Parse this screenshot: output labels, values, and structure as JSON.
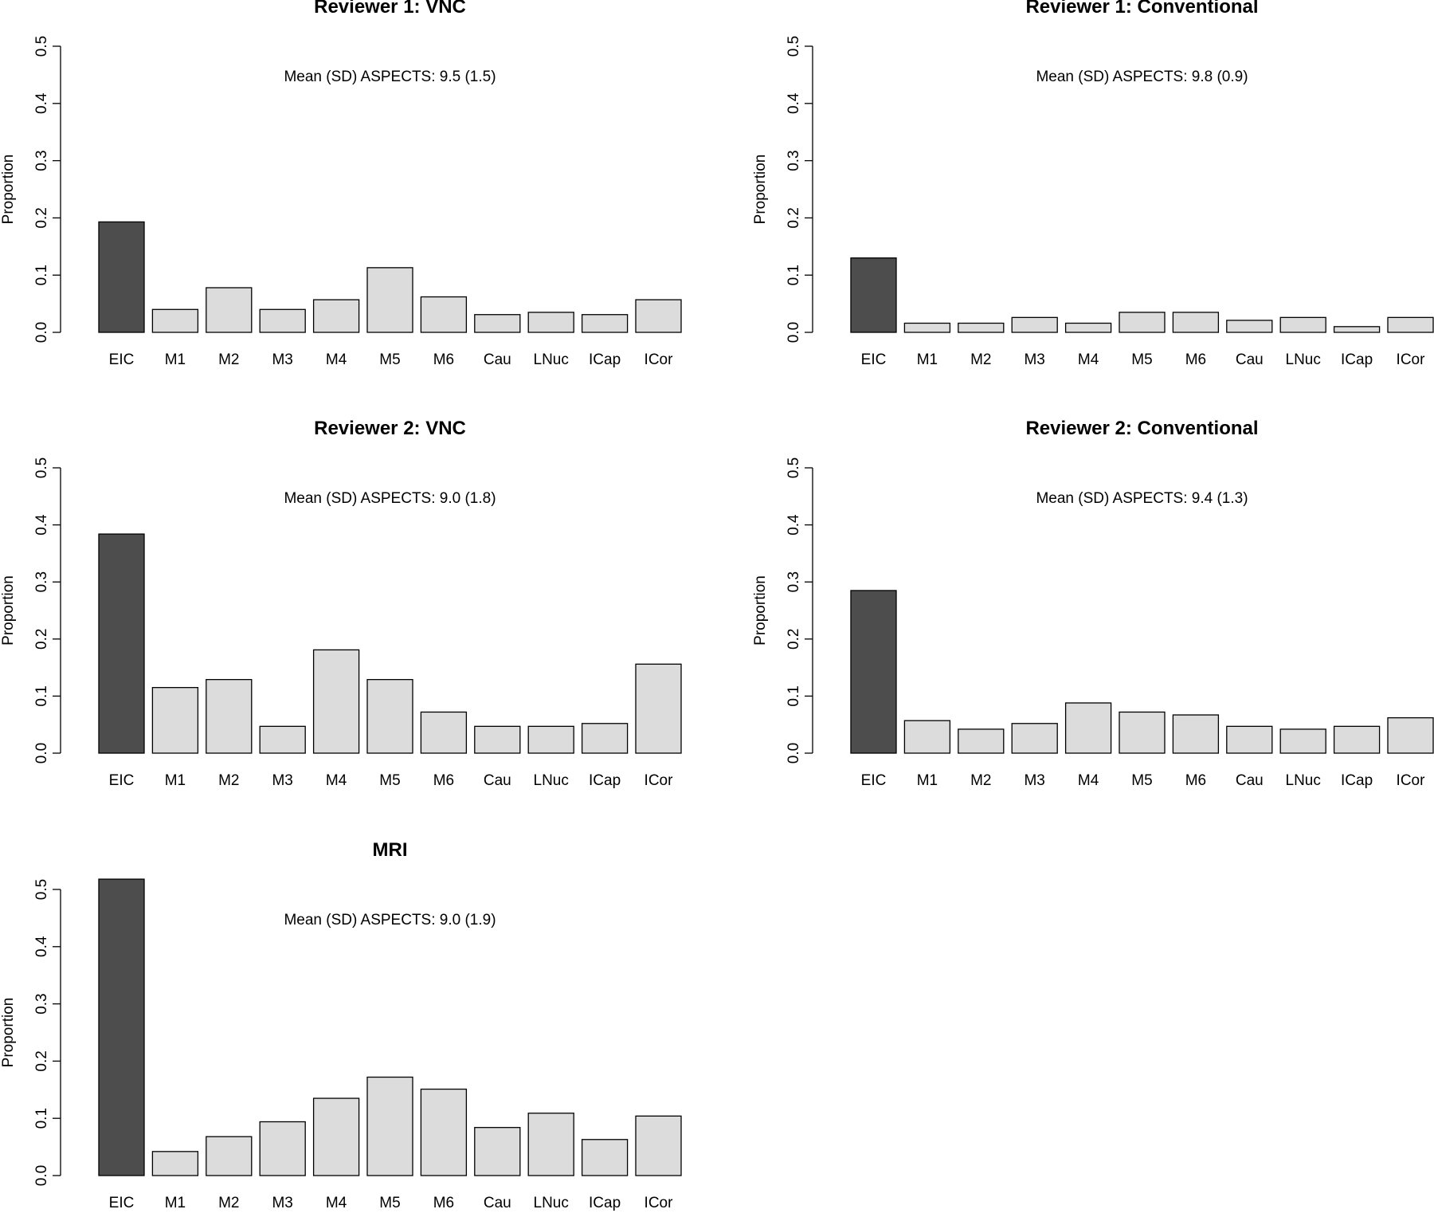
{
  "chart_data": [
    {
      "type": "bar",
      "title": "Reviewer 1: VNC",
      "annotation": "Mean (SD) ASPECTS: 9.5 (1.5)",
      "ylabel": "Proportion",
      "xlabel": "",
      "ylim": [
        0,
        0.5
      ],
      "yticks": [
        "0.0",
        "0.1",
        "0.2",
        "0.3",
        "0.4",
        "0.5"
      ],
      "categories": [
        "EIC",
        "M1",
        "M2",
        "M3",
        "M4",
        "M5",
        "M6",
        "Cau",
        "LNuc",
        "ICap",
        "ICor"
      ],
      "values": [
        0.193,
        0.04,
        0.078,
        0.04,
        0.057,
        0.113,
        0.062,
        0.031,
        0.035,
        0.031,
        0.057
      ],
      "highlight_color": "#4d4d4d",
      "bar_color": "#dcdcdc"
    },
    {
      "type": "bar",
      "title": "Reviewer 1: Conventional",
      "annotation": "Mean (SD) ASPECTS: 9.8 (0.9)",
      "ylabel": "Proportion",
      "xlabel": "",
      "ylim": [
        0,
        0.5
      ],
      "yticks": [
        "0.0",
        "0.1",
        "0.2",
        "0.3",
        "0.4",
        "0.5"
      ],
      "categories": [
        "EIC",
        "M1",
        "M2",
        "M3",
        "M4",
        "M5",
        "M6",
        "Cau",
        "LNuc",
        "ICap",
        "ICor"
      ],
      "values": [
        0.13,
        0.016,
        0.016,
        0.026,
        0.016,
        0.035,
        0.035,
        0.021,
        0.026,
        0.01,
        0.026
      ],
      "highlight_color": "#4d4d4d",
      "bar_color": "#dcdcdc"
    },
    {
      "type": "bar",
      "title": "Reviewer 2: VNC",
      "annotation": "Mean (SD) ASPECTS: 9.0 (1.8)",
      "ylabel": "Proportion",
      "xlabel": "",
      "ylim": [
        0,
        0.5
      ],
      "yticks": [
        "0.0",
        "0.1",
        "0.2",
        "0.3",
        "0.4",
        "0.5"
      ],
      "categories": [
        "EIC",
        "M1",
        "M2",
        "M3",
        "M4",
        "M5",
        "M6",
        "Cau",
        "LNuc",
        "ICap",
        "ICor"
      ],
      "values": [
        0.384,
        0.115,
        0.129,
        0.047,
        0.181,
        0.129,
        0.072,
        0.047,
        0.047,
        0.052,
        0.156
      ],
      "highlight_color": "#4d4d4d",
      "bar_color": "#dcdcdc"
    },
    {
      "type": "bar",
      "title": "Reviewer 2: Conventional",
      "annotation": "Mean (SD) ASPECTS: 9.4 (1.3)",
      "ylabel": "Proportion",
      "xlabel": "",
      "ylim": [
        0,
        0.5
      ],
      "yticks": [
        "0.0",
        "0.1",
        "0.2",
        "0.3",
        "0.4",
        "0.5"
      ],
      "categories": [
        "EIC",
        "M1",
        "M2",
        "M3",
        "M4",
        "M5",
        "M6",
        "Cau",
        "LNuc",
        "ICap",
        "ICor"
      ],
      "values": [
        0.285,
        0.057,
        0.042,
        0.052,
        0.088,
        0.072,
        0.067,
        0.047,
        0.042,
        0.047,
        0.062
      ],
      "highlight_color": "#4d4d4d",
      "bar_color": "#dcdcdc"
    },
    {
      "type": "bar",
      "title": "MRI",
      "annotation": "Mean (SD) ASPECTS: 9.0 (1.9)",
      "ylabel": "Proportion",
      "xlabel": "",
      "ylim": [
        0,
        0.5
      ],
      "yticks": [
        "0.0",
        "0.1",
        "0.2",
        "0.3",
        "0.4",
        "0.5"
      ],
      "categories": [
        "EIC",
        "M1",
        "M2",
        "M3",
        "M4",
        "M5",
        "M6",
        "Cau",
        "LNuc",
        "ICap",
        "ICor"
      ],
      "values": [
        0.518,
        0.042,
        0.068,
        0.094,
        0.135,
        0.172,
        0.151,
        0.084,
        0.109,
        0.063,
        0.104
      ],
      "highlight_color": "#4d4d4d",
      "bar_color": "#dcdcdc"
    }
  ]
}
